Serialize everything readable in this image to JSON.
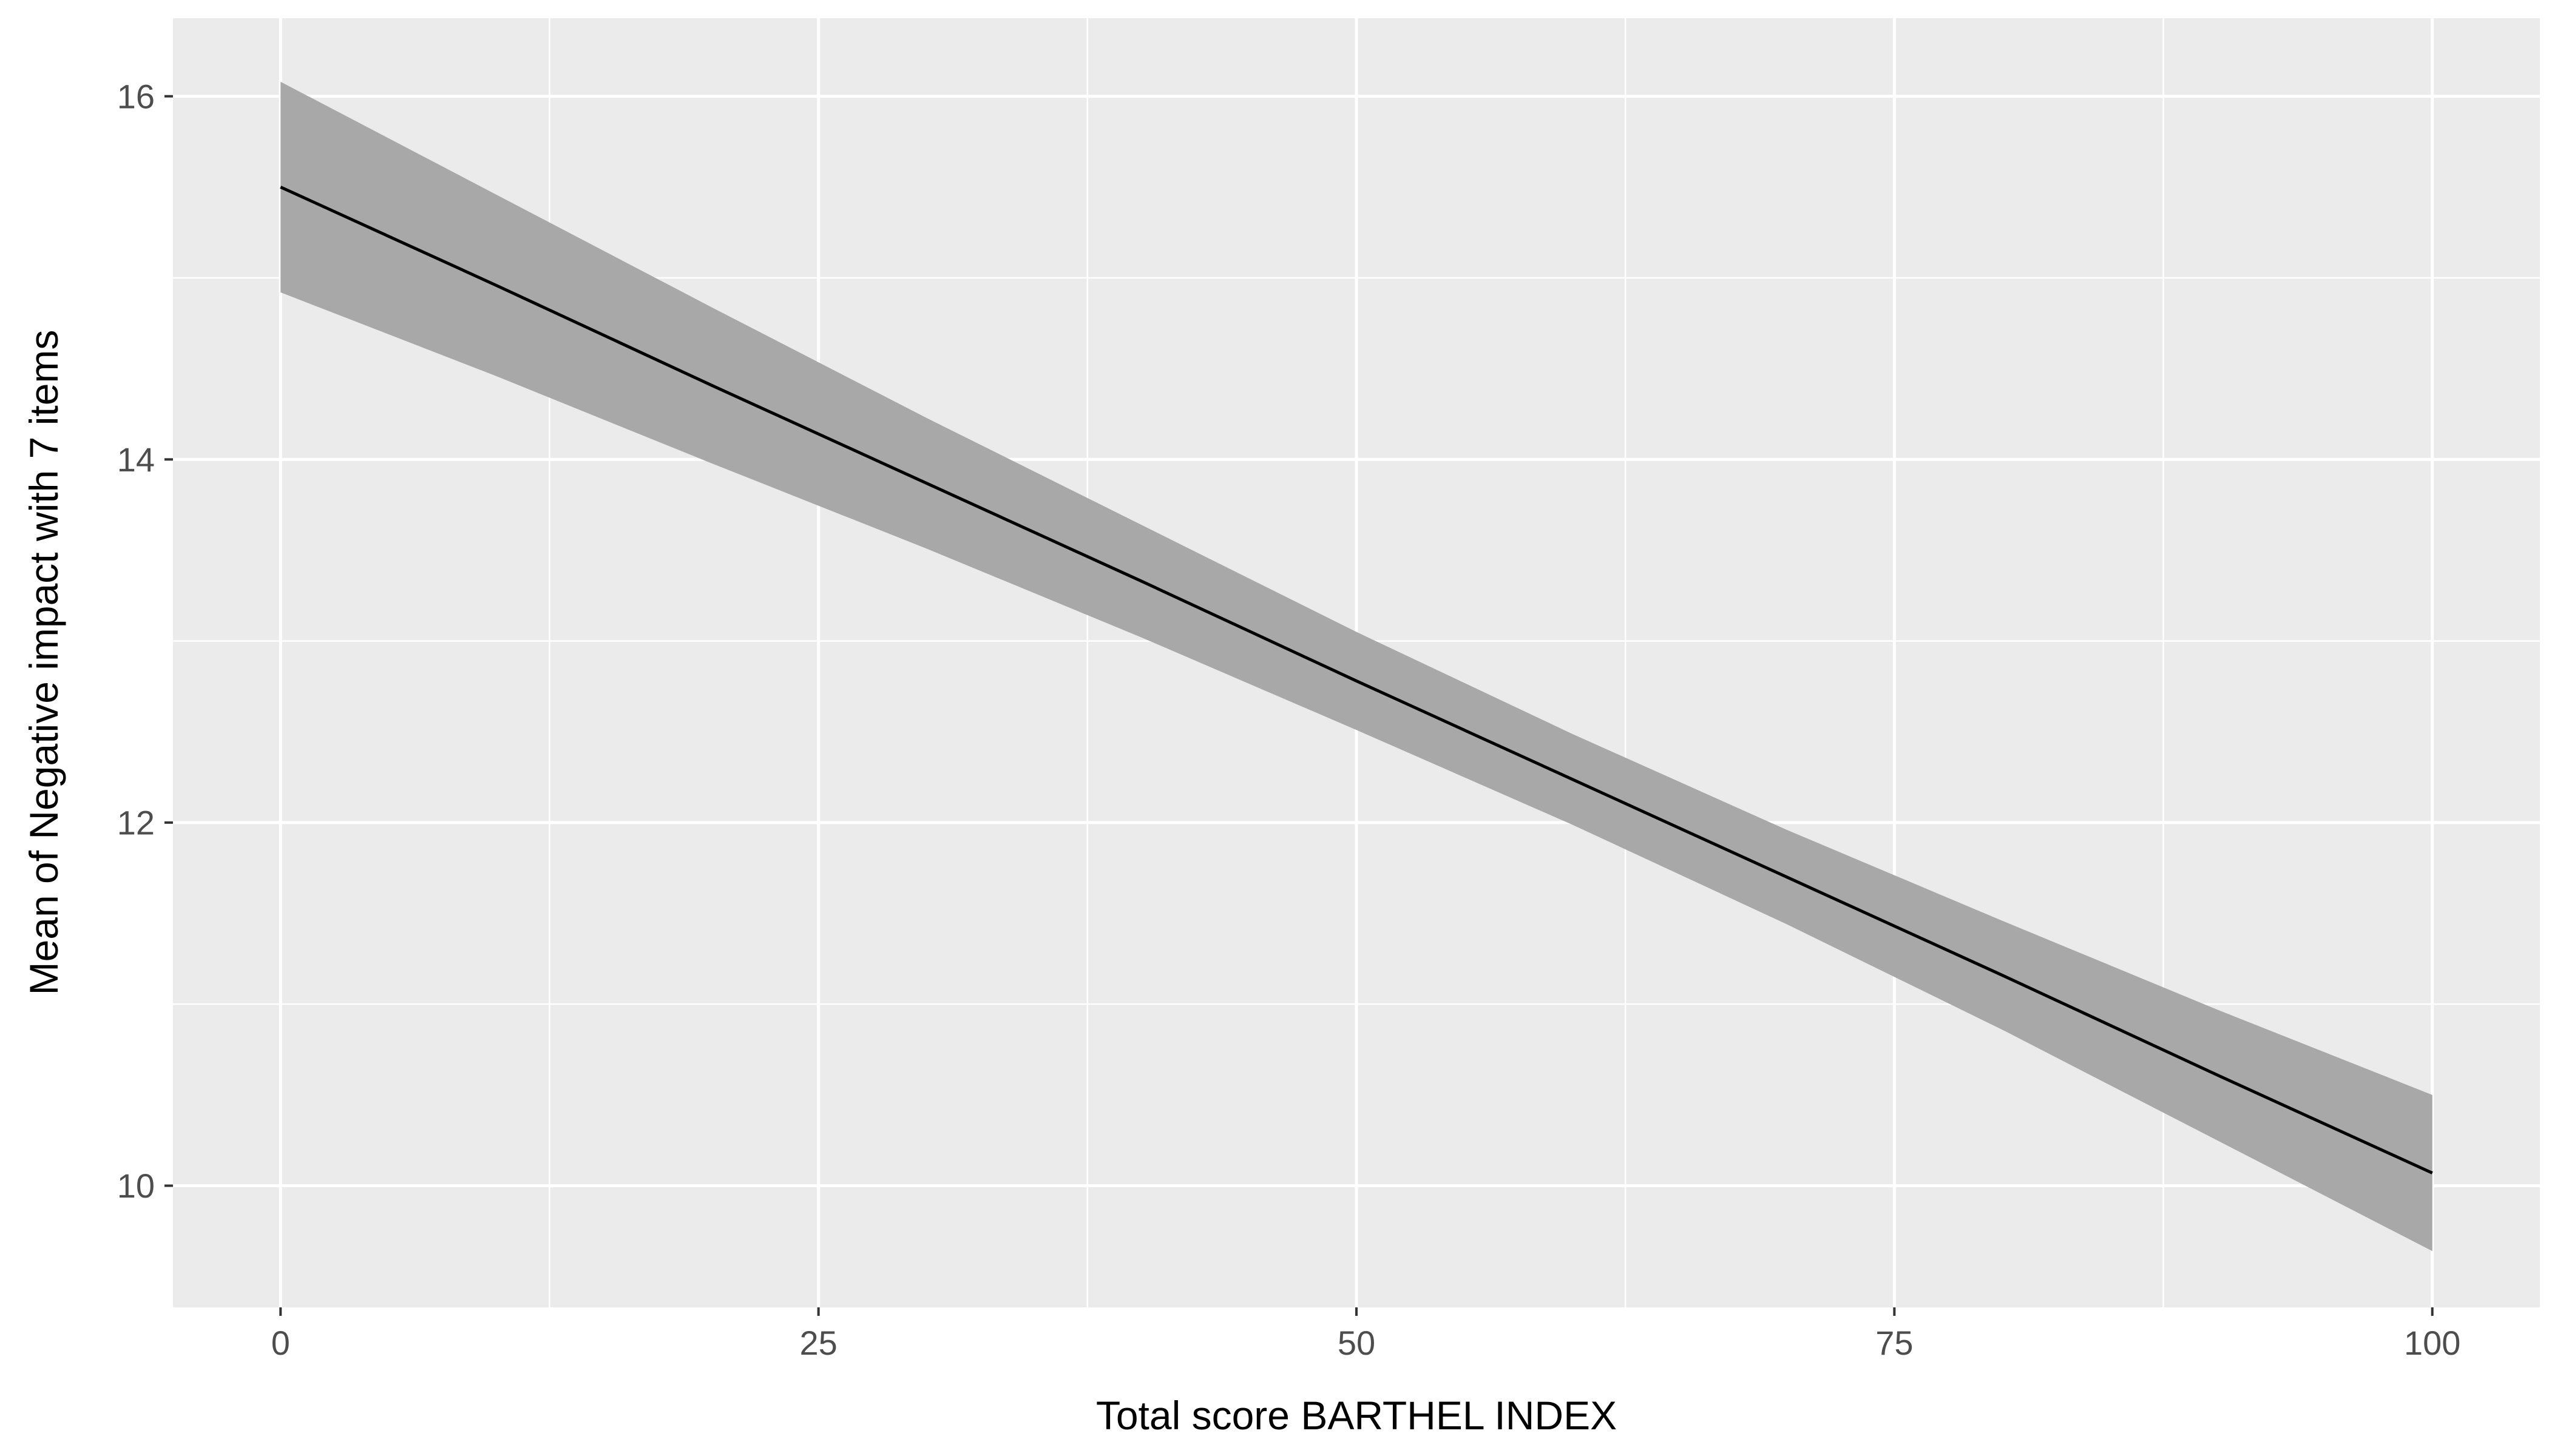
{
  "chart_data": {
    "type": "line",
    "title": "",
    "xlabel": "Total score BARTHEL INDEX",
    "ylabel": "Mean of Negative impact with 7 items",
    "x": [
      0,
      10,
      20,
      30,
      40,
      50,
      60,
      70,
      80,
      90,
      100
    ],
    "series": [
      {
        "name": "fitted-line",
        "values": [
          15.5,
          14.96,
          14.41,
          13.87,
          13.33,
          12.78,
          12.24,
          11.7,
          11.16,
          10.61,
          10.07
        ]
      }
    ],
    "ci_upper": [
      16.08,
      15.46,
      14.84,
      14.23,
      13.64,
      13.05,
      12.49,
      11.96,
      11.46,
      10.97,
      10.5
    ],
    "ci_lower": [
      14.92,
      14.46,
      13.98,
      13.51,
      13.02,
      12.51,
      11.99,
      11.44,
      10.86,
      10.25,
      9.64
    ],
    "xlim": [
      -5,
      105
    ],
    "ylim": [
      9.33,
      16.43
    ],
    "x_ticks": [
      0,
      25,
      50,
      75,
      100
    ],
    "y_ticks": [
      10,
      12,
      14,
      16
    ],
    "x_minor": [
      12.5,
      37.5,
      62.5,
      87.5
    ],
    "y_minor": [
      9,
      11,
      13,
      15,
      17
    ],
    "grid": true,
    "legend": "none",
    "colors": {
      "page_bg": "#FFFFFF",
      "panel_bg": "#EBEBEB",
      "grid_major": "#FFFFFF",
      "grid_minor": "#FFFFFF",
      "line": "#000000",
      "ci_band": "#A8A8A8",
      "tick_text": "#4D4D4D",
      "tick_mark": "#333333",
      "axis_title": "#000000"
    }
  }
}
